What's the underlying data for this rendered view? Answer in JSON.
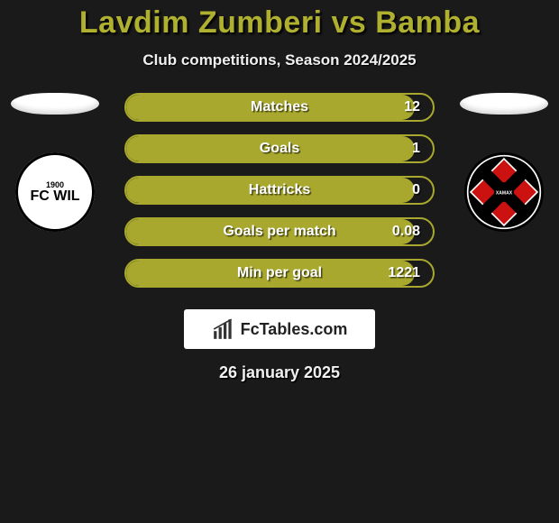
{
  "title": "Lavdim Zumberi vs Bamba",
  "subtitle": "Club competitions, Season 2024/2025",
  "colors": {
    "background": "#1a1a1a",
    "accent": "#a8a82e",
    "title_color": "#b0b030",
    "text": "#ffffff"
  },
  "players": {
    "left": {
      "name": "Lavdim Zumberi",
      "club_name": "FC Wil 1900",
      "club_short": "FC WIL",
      "club_sub": "1900"
    },
    "right": {
      "name": "Bamba",
      "club_name": "Xamax",
      "club_short": "XAMAX"
    }
  },
  "stats": [
    {
      "label": "Matches",
      "value": "12",
      "fill_pct": 94
    },
    {
      "label": "Goals",
      "value": "1",
      "fill_pct": 94
    },
    {
      "label": "Hattricks",
      "value": "0",
      "fill_pct": 94
    },
    {
      "label": "Goals per match",
      "value": "0.08",
      "fill_pct": 94
    },
    {
      "label": "Min per goal",
      "value": "1221",
      "fill_pct": 94
    }
  ],
  "watermark": "FcTables.com",
  "date": "26 january 2025"
}
